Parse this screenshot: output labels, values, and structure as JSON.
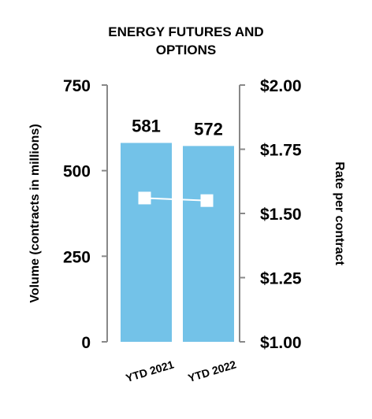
{
  "chart_data": {
    "type": "bar",
    "title": [
      "ENERGY FUTURES AND",
      "OPTIONS"
    ],
    "categories": [
      "YTD 2021",
      "YTD 2022"
    ],
    "values": [
      581,
      572
    ],
    "data_labels": [
      "581",
      "572"
    ],
    "ylabel": "Volume (contracts in millions)",
    "ylim": [
      0,
      750
    ],
    "yticks": [
      0,
      250,
      500,
      750
    ],
    "ytick_labels": [
      "0",
      "250",
      "500",
      "750"
    ],
    "y2label": "Rate per contract",
    "y2lim": [
      1.0,
      2.0
    ],
    "y2ticks": [
      1.0,
      1.25,
      1.5,
      1.75,
      2.0
    ],
    "y2tick_labels": [
      "$1.00",
      "$1.25",
      "$1.50",
      "$1.75",
      "$2.00"
    ],
    "line_series": {
      "type": "line",
      "values": [
        1.56,
        1.55
      ]
    },
    "grid": false,
    "legend": "none",
    "colors": {
      "bar": "#73C2E8",
      "line": "#FFFFFF",
      "marker": "#FFFFFF",
      "axis": "#888888"
    }
  }
}
